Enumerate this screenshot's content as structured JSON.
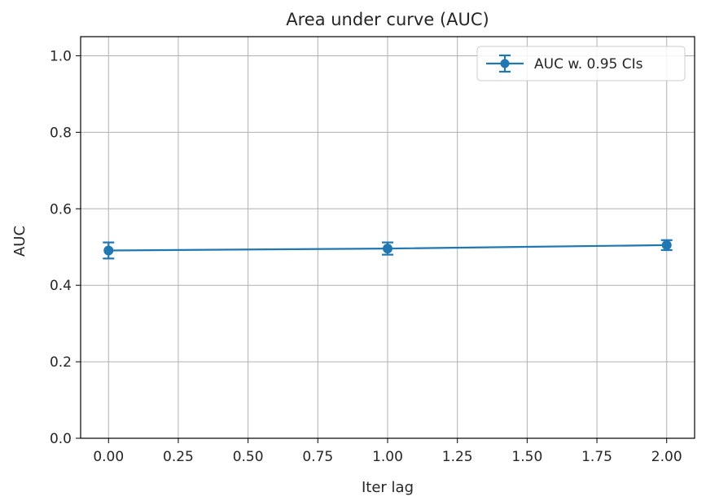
{
  "chart_data": {
    "type": "line",
    "title": "Area under curve (AUC)",
    "xlabel": "Iter lag",
    "ylabel": "AUC",
    "xlim": [
      -0.1,
      2.1
    ],
    "ylim": [
      0.0,
      1.05
    ],
    "xticks": [
      0.0,
      0.25,
      0.5,
      0.75,
      1.0,
      1.25,
      1.5,
      1.75,
      2.0
    ],
    "xtick_labels": [
      "0.00",
      "0.25",
      "0.50",
      "0.75",
      "1.00",
      "1.25",
      "1.50",
      "1.75",
      "2.00"
    ],
    "yticks": [
      0.0,
      0.2,
      0.4,
      0.6,
      0.8,
      1.0
    ],
    "ytick_labels": [
      "0.0",
      "0.2",
      "0.4",
      "0.6",
      "0.8",
      "1.0"
    ],
    "grid": true,
    "legend_position": "top-right",
    "series": [
      {
        "name": "AUC w. 0.95 CIs",
        "color": "#1f77b4",
        "x": [
          0.0,
          1.0,
          2.0
        ],
        "y": [
          0.491,
          0.496,
          0.505
        ],
        "ci_low": [
          0.47,
          0.48,
          0.492
        ],
        "ci_high": [
          0.512,
          0.512,
          0.518
        ]
      }
    ]
  }
}
